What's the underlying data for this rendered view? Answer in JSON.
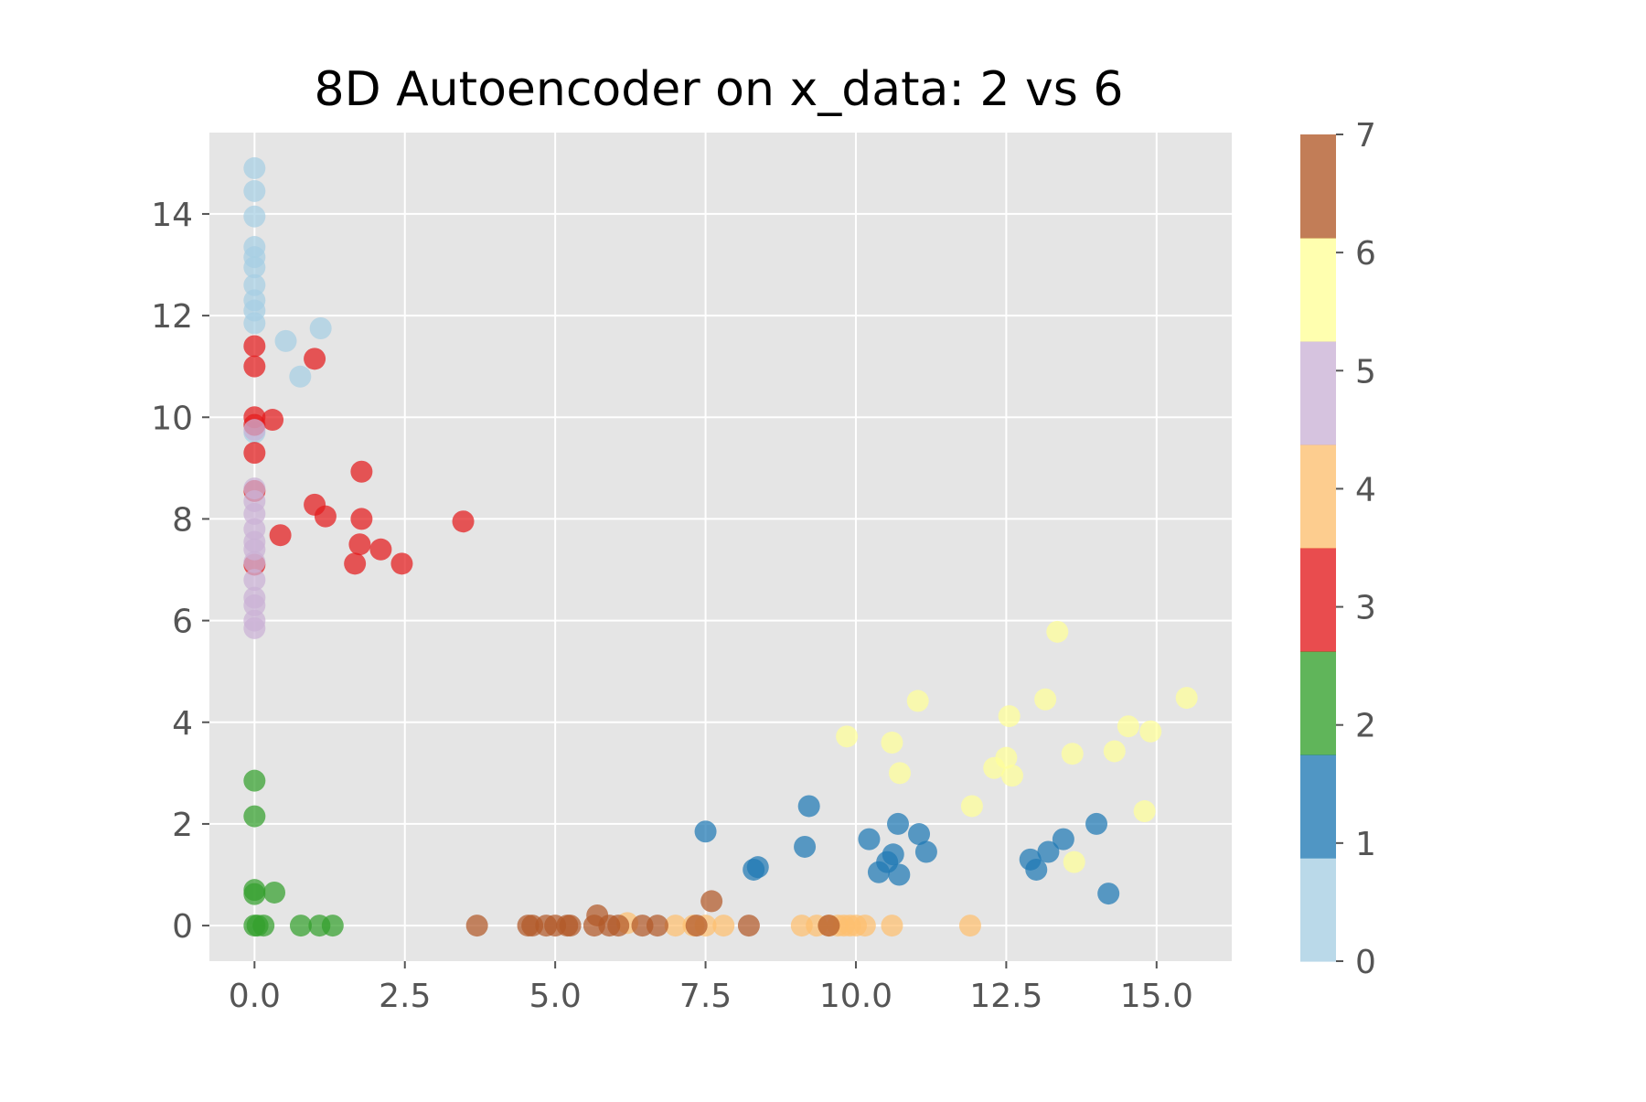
{
  "chart_data": {
    "type": "scatter",
    "title": "8D Autoencoder on x_data: 2 vs 6",
    "xlabel": "",
    "ylabel": "",
    "xlim": [
      -0.75,
      16.25
    ],
    "ylim": [
      -0.7,
      15.6
    ],
    "xticks": [
      0.0,
      2.5,
      5.0,
      7.5,
      10.0,
      12.5,
      15.0
    ],
    "xtick_labels": [
      "0.0",
      "2.5",
      "5.0",
      "7.5",
      "10.0",
      "12.5",
      "15.0"
    ],
    "yticks": [
      0,
      2,
      4,
      6,
      8,
      10,
      12,
      14
    ],
    "ytick_labels": [
      "0",
      "2",
      "4",
      "6",
      "8",
      "10",
      "12",
      "14"
    ],
    "grid": true,
    "style": "ggplot",
    "colorbar": {
      "min": 0,
      "max": 7,
      "ticks": [
        0,
        1,
        2,
        3,
        4,
        5,
        6,
        7
      ],
      "tick_labels": [
        "0",
        "1",
        "2",
        "3",
        "4",
        "5",
        "6",
        "7"
      ],
      "colors": [
        "#a6cee3",
        "#1f78b4",
        "#33a02c",
        "#e31a1c",
        "#fdbf6f",
        "#cab2d6",
        "#ffff99",
        "#b15928"
      ]
    },
    "series": [
      {
        "label": 0,
        "color": "#a6cee3",
        "points": [
          [
            0,
            14.9
          ],
          [
            0,
            14.45
          ],
          [
            0,
            13.95
          ],
          [
            0,
            13.35
          ],
          [
            0,
            13.15
          ],
          [
            0,
            12.95
          ],
          [
            0,
            12.6
          ],
          [
            0,
            12.3
          ],
          [
            0,
            12.1
          ],
          [
            0,
            11.85
          ],
          [
            0.52,
            11.5
          ],
          [
            1.1,
            11.75
          ],
          [
            0.76,
            10.8
          ],
          [
            0,
            9.7
          ]
        ]
      },
      {
        "label": 1,
        "color": "#1f78b4",
        "points": [
          [
            7.5,
            1.85
          ],
          [
            8.3,
            1.1
          ],
          [
            8.37,
            1.15
          ],
          [
            9.15,
            1.55
          ],
          [
            9.22,
            2.35
          ],
          [
            10.22,
            1.7
          ],
          [
            10.38,
            1.05
          ],
          [
            10.52,
            1.25
          ],
          [
            10.62,
            1.4
          ],
          [
            10.7,
            2.0
          ],
          [
            10.72,
            1.0
          ],
          [
            11.05,
            1.8
          ],
          [
            11.17,
            1.45
          ],
          [
            12.9,
            1.3
          ],
          [
            13.0,
            1.1
          ],
          [
            13.2,
            1.45
          ],
          [
            13.45,
            1.7
          ],
          [
            14.0,
            2.0
          ],
          [
            14.2,
            0.63
          ]
        ]
      },
      {
        "label": 2,
        "color": "#33a02c",
        "points": [
          [
            0,
            2.85
          ],
          [
            0,
            2.15
          ],
          [
            0,
            0.7
          ],
          [
            0,
            0.62
          ],
          [
            0.33,
            0.65
          ],
          [
            0,
            0
          ],
          [
            0.05,
            0
          ],
          [
            0.15,
            0
          ],
          [
            0.77,
            0
          ],
          [
            1.08,
            0
          ],
          [
            1.3,
            0
          ]
        ]
      },
      {
        "label": 3,
        "color": "#e31a1c",
        "points": [
          [
            0,
            11.4
          ],
          [
            0,
            11.0
          ],
          [
            0,
            10.0
          ],
          [
            0,
            9.85
          ],
          [
            0.3,
            9.95
          ],
          [
            1.0,
            11.15
          ],
          [
            0,
            9.3
          ],
          [
            1.78,
            8.93
          ],
          [
            1.0,
            8.28
          ],
          [
            1.18,
            8.05
          ],
          [
            1.78,
            8.0
          ],
          [
            0.43,
            7.68
          ],
          [
            1.75,
            7.5
          ],
          [
            2.1,
            7.4
          ],
          [
            1.67,
            7.12
          ],
          [
            2.45,
            7.12
          ],
          [
            3.47,
            7.95
          ],
          [
            0,
            8.55
          ],
          [
            0,
            7.1
          ]
        ]
      },
      {
        "label": 4,
        "color": "#fdbf6f",
        "points": [
          [
            6.2,
            0.05
          ],
          [
            7.0,
            0
          ],
          [
            7.3,
            0
          ],
          [
            7.5,
            0
          ],
          [
            7.8,
            0
          ],
          [
            9.1,
            0
          ],
          [
            9.35,
            0
          ],
          [
            9.55,
            0
          ],
          [
            9.7,
            0
          ],
          [
            9.8,
            0
          ],
          [
            9.9,
            0
          ],
          [
            10.0,
            0
          ],
          [
            10.15,
            0
          ],
          [
            10.6,
            0
          ],
          [
            11.9,
            0
          ]
        ]
      },
      {
        "label": 5,
        "color": "#cab2d6",
        "points": [
          [
            0,
            9.75
          ],
          [
            0,
            8.6
          ],
          [
            0,
            8.35
          ],
          [
            0,
            8.1
          ],
          [
            0,
            7.8
          ],
          [
            0,
            7.55
          ],
          [
            0,
            7.4
          ],
          [
            0,
            7.15
          ],
          [
            0,
            6.8
          ],
          [
            0,
            6.45
          ],
          [
            0,
            6.3
          ],
          [
            0,
            6.0
          ],
          [
            0,
            5.85
          ]
        ]
      },
      {
        "label": 6,
        "color": "#ffff99",
        "points": [
          [
            9.85,
            3.72
          ],
          [
            10.6,
            3.6
          ],
          [
            10.73,
            3.0
          ],
          [
            11.03,
            4.42
          ],
          [
            11.93,
            2.35
          ],
          [
            12.3,
            3.1
          ],
          [
            12.5,
            3.3
          ],
          [
            12.6,
            2.95
          ],
          [
            12.55,
            4.12
          ],
          [
            13.15,
            4.45
          ],
          [
            13.35,
            5.78
          ],
          [
            13.6,
            3.38
          ],
          [
            13.63,
            1.25
          ],
          [
            14.3,
            3.43
          ],
          [
            14.53,
            3.92
          ],
          [
            14.8,
            2.25
          ],
          [
            14.9,
            3.82
          ],
          [
            15.5,
            4.48
          ]
        ]
      },
      {
        "label": 7,
        "color": "#b15928",
        "points": [
          [
            3.7,
            0
          ],
          [
            4.55,
            0
          ],
          [
            4.62,
            0
          ],
          [
            4.85,
            0
          ],
          [
            5.0,
            0
          ],
          [
            5.2,
            0
          ],
          [
            5.25,
            0
          ],
          [
            5.65,
            0
          ],
          [
            5.7,
            0.2
          ],
          [
            5.9,
            0
          ],
          [
            6.05,
            0
          ],
          [
            6.45,
            0
          ],
          [
            6.7,
            0
          ],
          [
            7.35,
            0
          ],
          [
            7.6,
            0.48
          ],
          [
            8.22,
            0
          ],
          [
            9.55,
            0
          ]
        ]
      }
    ]
  }
}
